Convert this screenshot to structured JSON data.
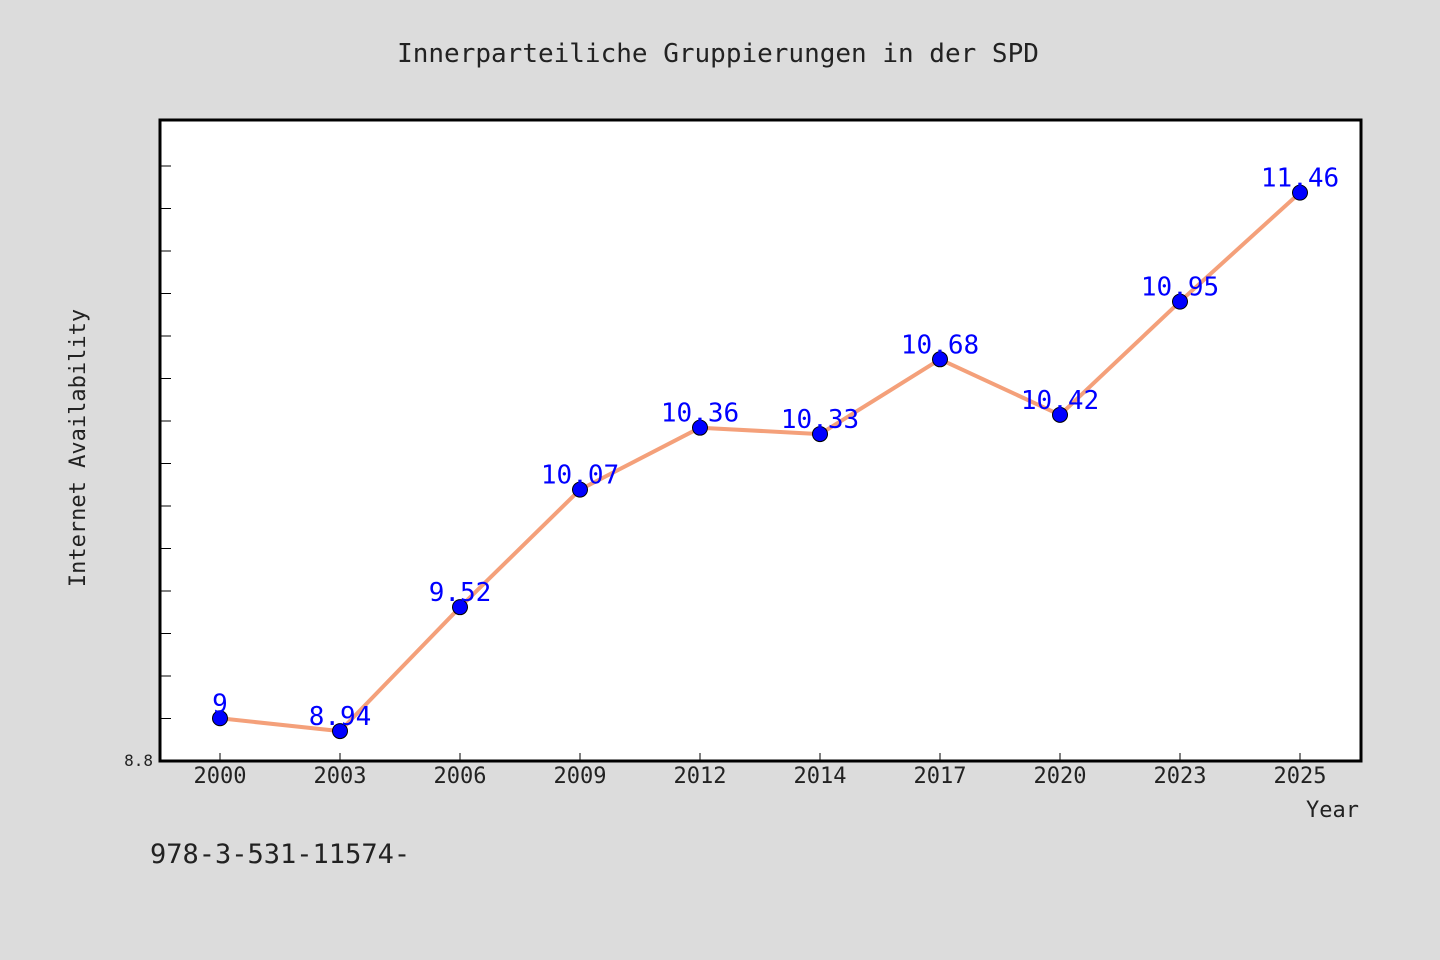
{
  "chart_data": {
    "type": "line",
    "title": "Innerparteiliche Gruppierungen in der SPD",
    "xlabel": "Year",
    "ylabel": "Internet Availability",
    "x": [
      "2000",
      "2003",
      "2006",
      "2009",
      "2012",
      "2014",
      "2017",
      "2020",
      "2023",
      "2025"
    ],
    "series": [
      {
        "values": [
          9,
          8.94,
          9.52,
          10.07,
          10.36,
          10.33,
          10.68,
          10.42,
          10.95,
          11.46
        ],
        "labels": [
          "9",
          "8.94",
          "9.52",
          "10.07",
          "10.36",
          "10.33",
          "10.68",
          "10.42",
          "10.95",
          "11.46"
        ]
      }
    ],
    "ylim": [
      8.8,
      11.8
    ],
    "y_tick_label": "8.8",
    "grid": false,
    "footnote": "978-3-531-11574-",
    "colors": {
      "background": "#dcdcdc",
      "plot_area": "#ffffff",
      "line": "#f4a07a",
      "marker": "#0000ff",
      "data_label": "#0000ff",
      "text": "#222222"
    }
  }
}
